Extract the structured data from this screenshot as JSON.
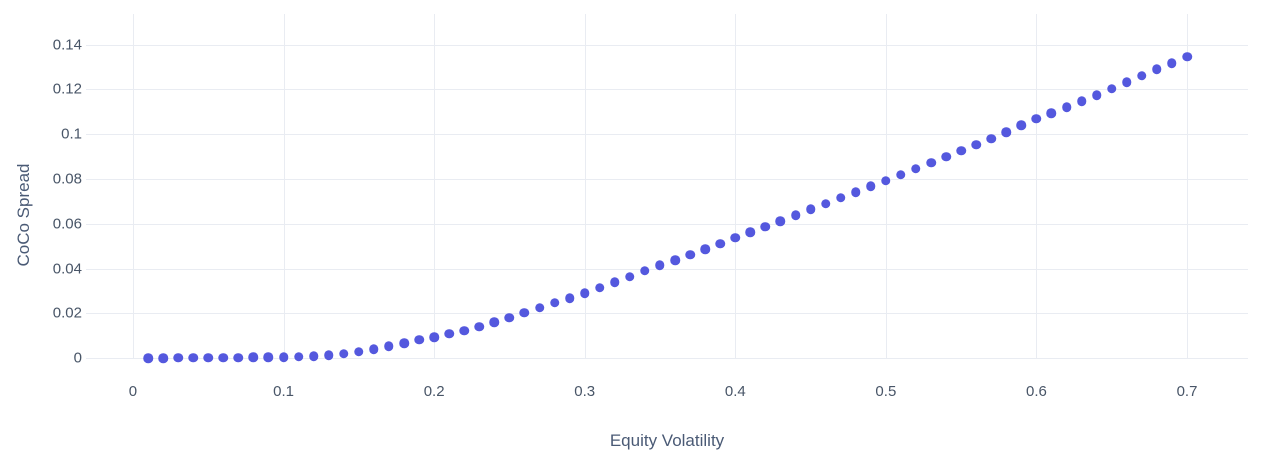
{
  "chart_data": {
    "type": "scatter",
    "title": "",
    "xlabel": "Equity Volatility",
    "ylabel": "CoCo Spread",
    "x": [
      0.01,
      0.02,
      0.03,
      0.04,
      0.05,
      0.06,
      0.07,
      0.08,
      0.09,
      0.1,
      0.11,
      0.12,
      0.13,
      0.14,
      0.15,
      0.16,
      0.17,
      0.18,
      0.19,
      0.2,
      0.21,
      0.22,
      0.23,
      0.24,
      0.25,
      0.26,
      0.27,
      0.28,
      0.29,
      0.3,
      0.31,
      0.32,
      0.33,
      0.34,
      0.35,
      0.36,
      0.37,
      0.38,
      0.39,
      0.4,
      0.41,
      0.42,
      0.43,
      0.44,
      0.45,
      0.46,
      0.47,
      0.48,
      0.49,
      0.5,
      0.51,
      0.52,
      0.53,
      0.54,
      0.55,
      0.56,
      0.57,
      0.58,
      0.59,
      0.6,
      0.61,
      0.62,
      0.63,
      0.64,
      0.65,
      0.66,
      0.67,
      0.68,
      0.69,
      0.7
    ],
    "y": [
      0.0,
      0.0,
      0.0001,
      0.0001,
      0.0001,
      0.0002,
      0.0002,
      0.0003,
      0.0003,
      0.0004,
      0.0005,
      0.0008,
      0.0012,
      0.0019,
      0.0028,
      0.004,
      0.0052,
      0.0066,
      0.0081,
      0.0094,
      0.0108,
      0.0122,
      0.014,
      0.016,
      0.0181,
      0.0202,
      0.0225,
      0.0246,
      0.0267,
      0.029,
      0.0314,
      0.0339,
      0.0364,
      0.0389,
      0.0414,
      0.0438,
      0.0461,
      0.0486,
      0.0511,
      0.0537,
      0.0561,
      0.0586,
      0.0612,
      0.0638,
      0.0664,
      0.069,
      0.0716,
      0.0741,
      0.0767,
      0.0793,
      0.0819,
      0.0846,
      0.0872,
      0.0899,
      0.0926,
      0.0953,
      0.098,
      0.1009,
      0.1039,
      0.1068,
      0.1094,
      0.112,
      0.1147,
      0.1175,
      0.1204,
      0.1232,
      0.1261,
      0.129,
      0.1318,
      0.1347
    ],
    "xlim": [
      -0.0312,
      0.7405
    ],
    "ylim": [
      -0.0031,
      0.1537
    ],
    "xticks": {
      "values": [
        0,
        0.1,
        0.2,
        0.3,
        0.4,
        0.5,
        0.6,
        0.7
      ],
      "labels": [
        "0",
        "0.1",
        "0.2",
        "0.3",
        "0.4",
        "0.5",
        "0.6",
        "0.7"
      ]
    },
    "yticks": {
      "values": [
        0,
        0.02,
        0.04,
        0.06,
        0.08,
        0.1,
        0.12,
        0.14
      ],
      "labels": [
        "0",
        "0.02",
        "0.04",
        "0.06",
        "0.08",
        "0.1",
        "0.12",
        "0.14"
      ]
    },
    "grid": true,
    "legend": "none",
    "colors": {
      "marker": "#5458de",
      "grid": "#e9ecf2",
      "tick_text": "#485567",
      "axis_title_text": "#4a5a75",
      "background": "#ffffff"
    }
  }
}
